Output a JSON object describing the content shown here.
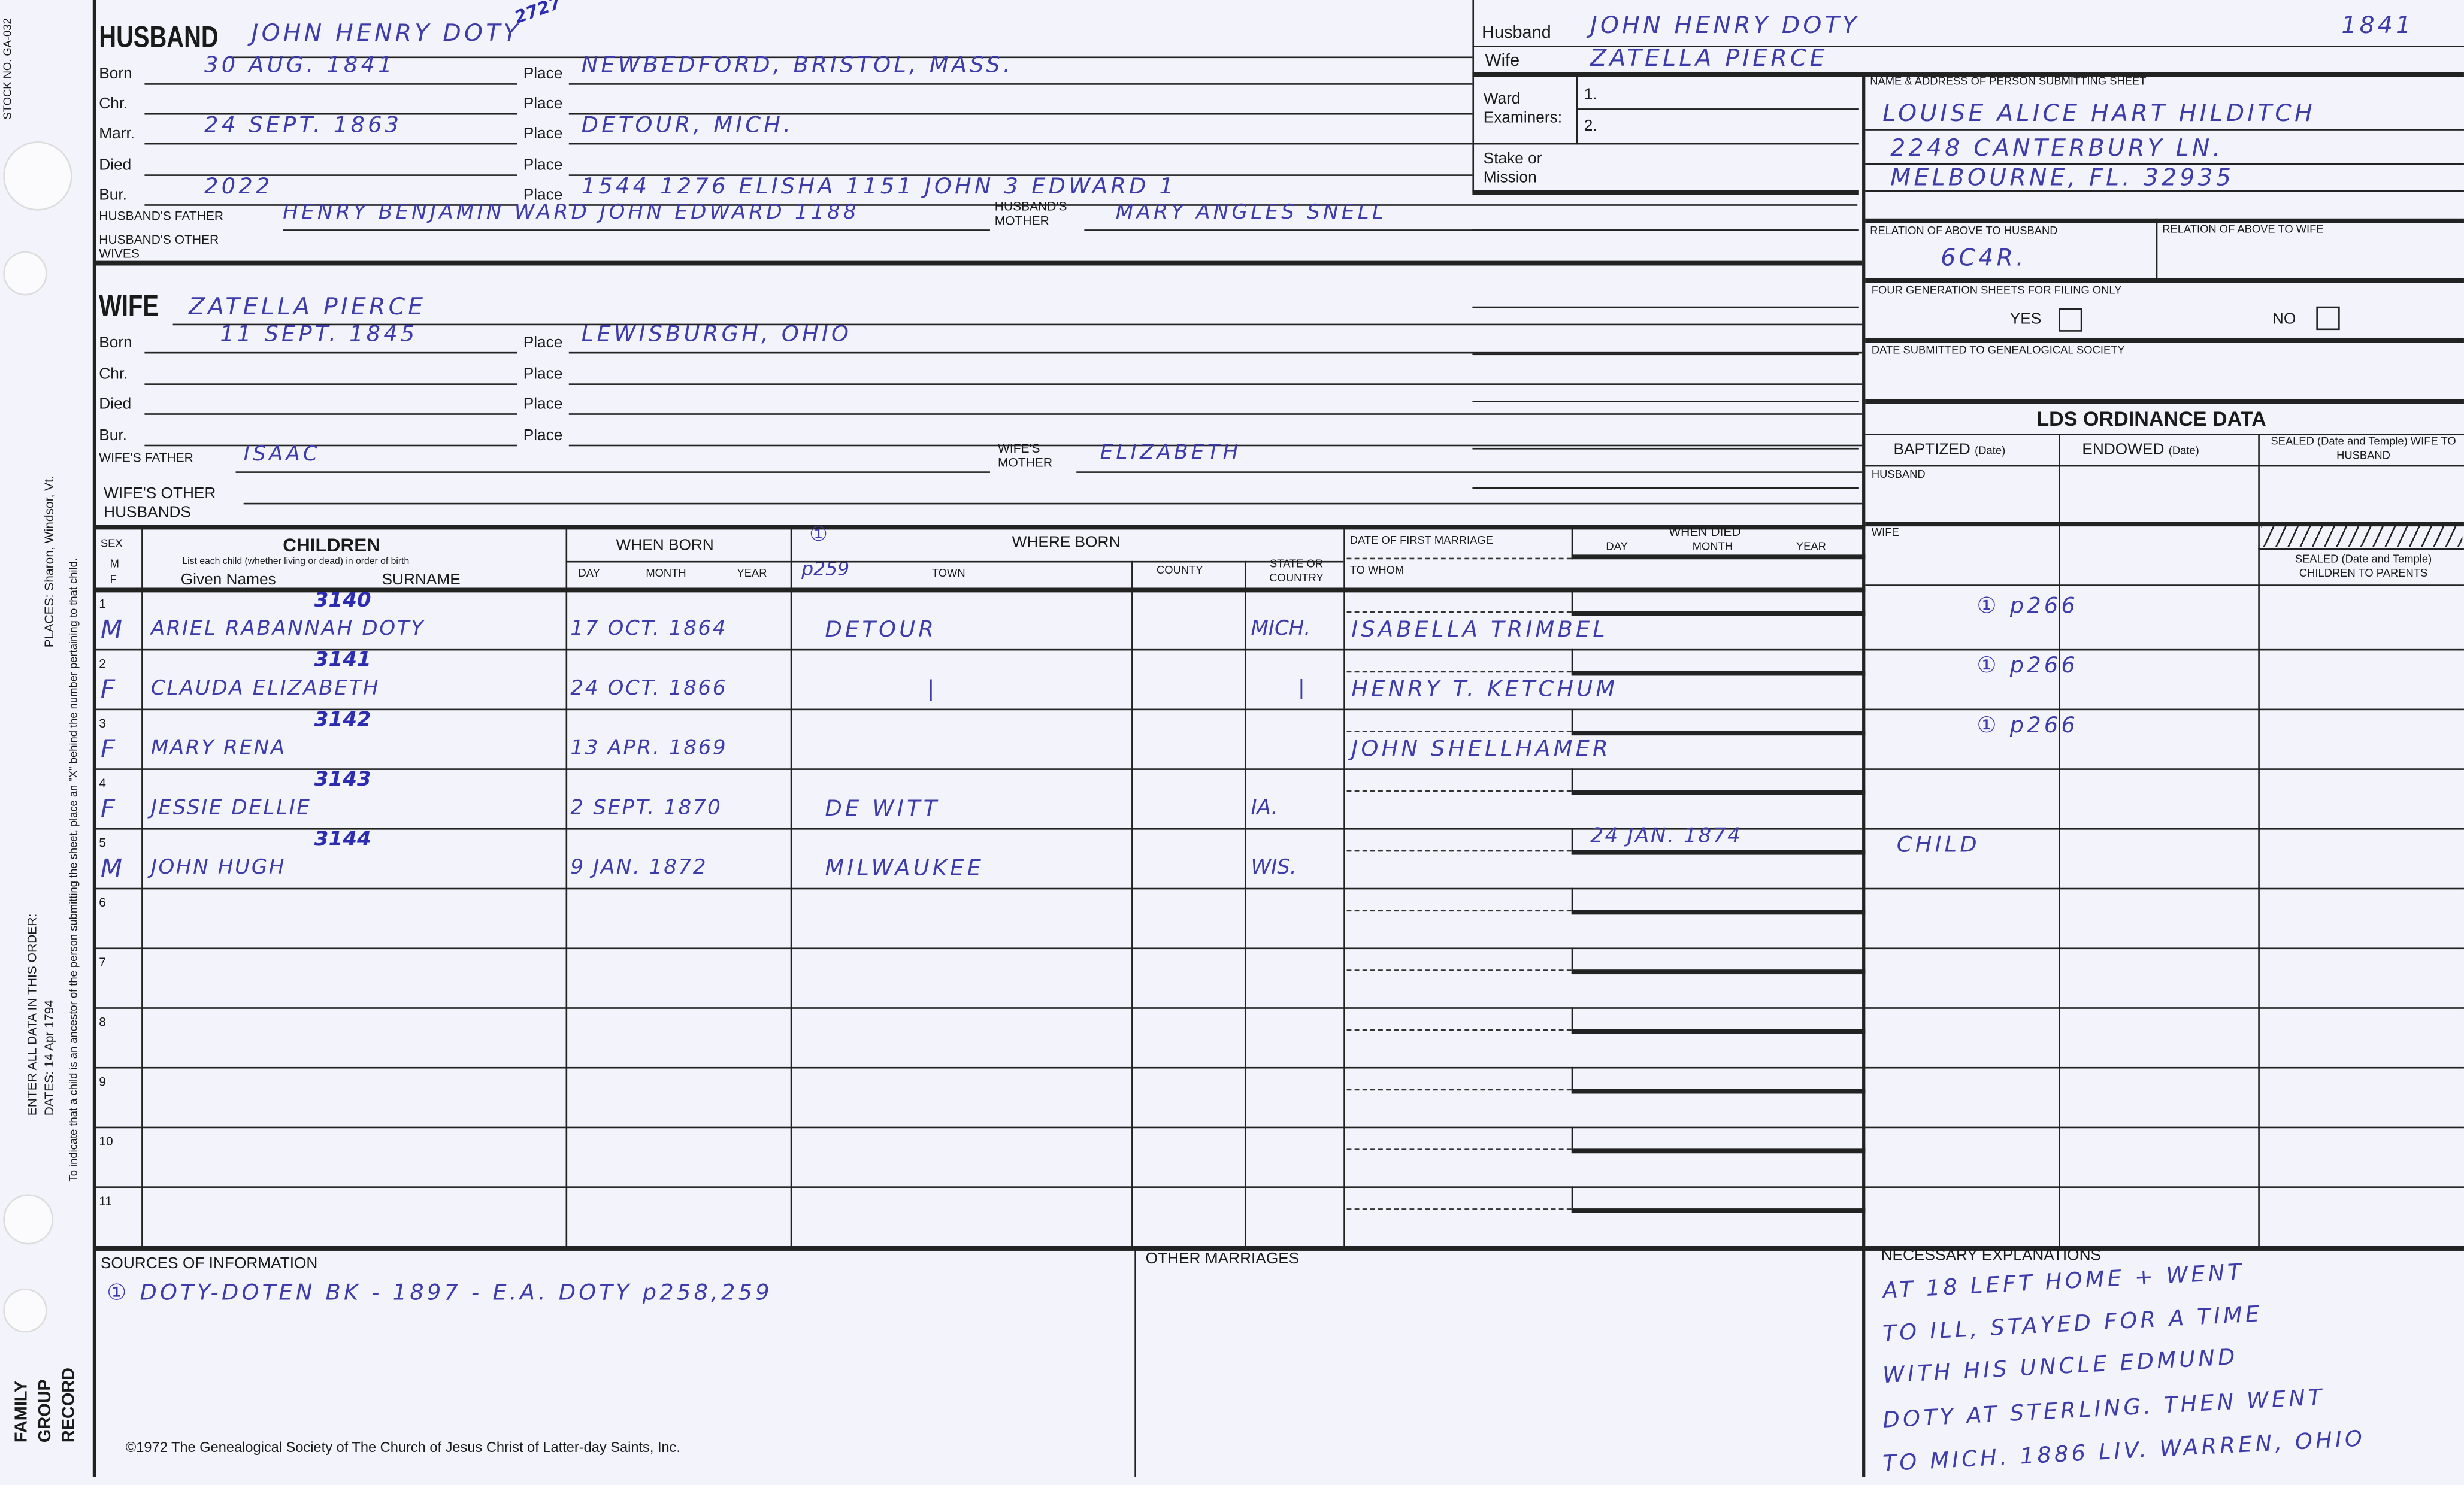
{
  "margin": {
    "stock_no": "STOCK NO. GA-032",
    "places": "PLACES: Sharon, Windsor, Vt.",
    "enter": "ENTER ALL DATA IN THIS ORDER:",
    "dates": "DATES: 14 Apr 1794",
    "indicate": "To indicate that a child is an ancestor of the person submitting the sheet, place an \"X\" behind the number pertaining to that child.",
    "form_title": [
      "FAMILY",
      "GROUP",
      "RECORD"
    ]
  },
  "husband": {
    "label": "HUSBAND",
    "name": "JOHN HENRY DOTY",
    "number": "2727",
    "events": [
      {
        "label": "Born",
        "date": "30 AUG. 1841",
        "place": "NEWBEDFORD, BRISTOL, MASS."
      },
      {
        "label": "Chr.",
        "date": "",
        "place": ""
      },
      {
        "label": "Marr.",
        "date": "24 SEPT. 1863",
        "place": "DETOUR,        MICH."
      },
      {
        "label": "Died",
        "date": "",
        "place": ""
      },
      {
        "label": "Bur.",
        "date": "2022",
        "place": "1544   1276         ELISHA 1151 JOHN 3 EDWARD 1"
      }
    ],
    "place_label": "Place",
    "father_label": "HUSBAND'S FATHER",
    "father": "HENRY BENJAMIN WARD JOHN EDWARD 1188",
    "mother_label": "HUSBAND'S MOTHER",
    "mother": "MARY ANGLES SNELL",
    "other_wives_label": "HUSBAND'S OTHER WIVES"
  },
  "wife": {
    "label": "WIFE",
    "name": "ZATELLA PIERCE",
    "events": [
      {
        "label": "Born",
        "date": "11 SEPT. 1845",
        "place": "LEWISBURGH,      OHIO"
      },
      {
        "label": "Chr.",
        "date": "",
        "place": ""
      },
      {
        "label": "Died",
        "date": "",
        "place": ""
      },
      {
        "label": "Bur.",
        "date": "",
        "place": ""
      }
    ],
    "father_label": "WIFE'S FATHER",
    "father": "ISAAC",
    "mother_label": "WIFE'S MOTHER",
    "mother": "ELIZABETH",
    "other_husbands_label": "WIFE'S OTHER HUSBANDS"
  },
  "header_right": {
    "husband_label": "Husband",
    "husband": "JOHN HENRY DOTY",
    "year": "1841",
    "wife_label": "Wife",
    "wife": "ZATELLA PIERCE",
    "ward_label": "Ward Examiners:",
    "ward1": "1.",
    "ward2": "2.",
    "stake_label": "Stake or Mission"
  },
  "submitter": {
    "label": "NAME & ADDRESS OF PERSON SUBMITTING SHEET",
    "lines": [
      "LOUISE ALICE HART HILDITCH",
      "2248 CANTERBURY LN.",
      "MELBOURNE, FL. 32935"
    ],
    "rel_husband_label": "RELATION OF ABOVE TO HUSBAND",
    "rel_husband": "6C4R.",
    "rel_wife_label": "RELATION OF ABOVE TO WIFE",
    "four_gen_label": "FOUR GENERATION SHEETS FOR FILING ONLY",
    "yes": "YES",
    "no": "NO",
    "date_submitted_label": "DATE SUBMITTED TO GENEALOGICAL SOCIETY"
  },
  "lds": {
    "title": "LDS ORDINANCE DATA",
    "baptized": "BAPTIZED",
    "endowed": "ENDOWED",
    "date": "(Date)",
    "sealed_wife": "SEALED (Date and Temple) WIFE TO HUSBAND",
    "husband": "HUSBAND",
    "wife": "WIFE",
    "sealed_children": "SEALED (Date and Temple) CHILDREN TO PARENTS"
  },
  "children_header": {
    "sex": "SEX",
    "m": "M",
    "f": "F",
    "children": "CHILDREN",
    "list_note": "List each child (whether living or dead) in order of birth",
    "given": "Given Names",
    "surname": "SURNAME",
    "when_born": "WHEN BORN",
    "day": "DAY",
    "month": "MONTH",
    "year": "YEAR",
    "where_born": "WHERE BORN",
    "source_mark": "①",
    "page_ref": "p259",
    "town": "TOWN",
    "county": "COUNTY",
    "state": "STATE OR COUNTRY",
    "first_marriage": "DATE OF FIRST MARRIAGE",
    "to_whom": "TO WHOM",
    "when_died": "WHEN DIED"
  },
  "children": [
    {
      "no": "1",
      "sex": "M",
      "id": "3140",
      "name": "ARIEL RABANNAH DOTY",
      "born": "17 OCT. 1864",
      "town": "DETOUR",
      "state": "MICH.",
      "spouse": "ISABELLA TRIMBEL",
      "died": "",
      "lds": "① p266"
    },
    {
      "no": "2",
      "sex": "F",
      "id": "3141",
      "name": "CLAUDA ELIZABETH",
      "born": "24 OCT. 1866",
      "town": "|",
      "state": "|",
      "spouse": "HENRY T. KETCHUM",
      "died": "",
      "lds": "① p266"
    },
    {
      "no": "3",
      "sex": "F",
      "id": "3142",
      "name": "MARY RENA",
      "born": "13 APR. 1869",
      "town": "",
      "state": "",
      "spouse": "JOHN SHELLHAMER",
      "died": "",
      "lds": "① p266"
    },
    {
      "no": "4",
      "sex": "F",
      "id": "3143",
      "name": "JESSIE DELLIE",
      "born": "2 SEPT. 1870",
      "town": "DE WITT",
      "state": "IA.",
      "spouse": "",
      "died": "",
      "lds": ""
    },
    {
      "no": "5",
      "sex": "M",
      "id": "3144",
      "name": "JOHN HUGH",
      "born": "9 JAN. 1872",
      "town": "MILWAUKEE",
      "state": "WIS.",
      "spouse": "",
      "died": "24 JAN. 1874",
      "lds": "CHILD"
    },
    {
      "no": "6"
    },
    {
      "no": "7"
    },
    {
      "no": "8"
    },
    {
      "no": "9"
    },
    {
      "no": "10"
    },
    {
      "no": "11"
    }
  ],
  "bottom": {
    "sources_label": "SOURCES OF INFORMATION",
    "sources": "① DOTY-DOTEN BK - 1897 - E.A. DOTY p258,259",
    "other_marriages_label": "OTHER MARRIAGES",
    "explanations_label": "NECESSARY EXPLANATIONS",
    "explanations": [
      "AT 18 LEFT HOME + WENT",
      "TO ILL, STAYED FOR A TIME",
      "WITH HIS UNCLE EDMUND",
      "DOTY AT STERLING. THEN WENT",
      "TO MICH. 1886 LIV. WARREN, OHIO"
    ],
    "copyright": "©1972 The Genealogical Society of The Church of Jesus Christ of Latter-day Saints, Inc."
  },
  "colors": {
    "ink": "#3d3ca8",
    "paper": "#f3f4fb"
  }
}
